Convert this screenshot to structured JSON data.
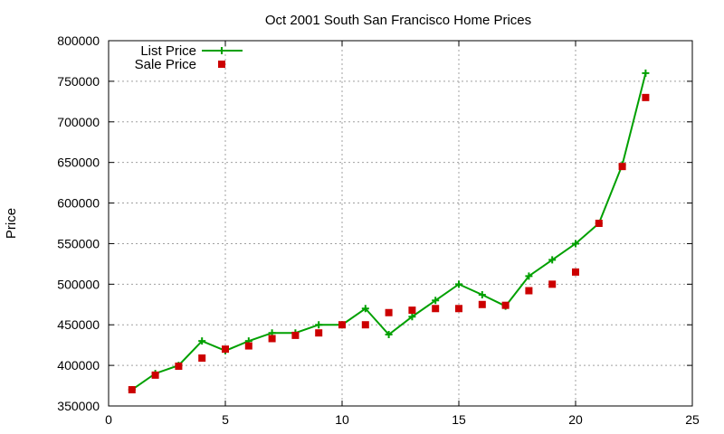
{
  "chart_data": {
    "type": "line",
    "title": "Oct 2001 South San Francisco Home Prices",
    "xlabel": "",
    "ylabel": "Price",
    "xlim": [
      0,
      25
    ],
    "ylim": [
      350000,
      800000
    ],
    "xticks": [
      0,
      5,
      10,
      15,
      20,
      25
    ],
    "yticks": [
      350000,
      400000,
      450000,
      500000,
      550000,
      600000,
      650000,
      700000,
      750000,
      800000
    ],
    "grid": true,
    "legend_position": "top-left",
    "series": [
      {
        "name": "List Price",
        "style": "line-with-cross-markers",
        "color": "#00a000",
        "x": [
          1,
          2,
          3,
          4,
          5,
          6,
          7,
          8,
          9,
          10,
          11,
          12,
          13,
          14,
          15,
          16,
          17,
          18,
          19,
          20,
          21,
          22,
          23
        ],
        "y": [
          370000,
          390000,
          400000,
          430000,
          418000,
          430000,
          440000,
          440000,
          450000,
          450000,
          470000,
          438000,
          460000,
          480000,
          500000,
          487000,
          473000,
          510000,
          530000,
          550000,
          575000,
          647000,
          760000
        ]
      },
      {
        "name": "Sale Price",
        "style": "square-markers",
        "color": "#cc0000",
        "x": [
          1,
          2,
          3,
          4,
          5,
          6,
          7,
          8,
          9,
          10,
          11,
          12,
          13,
          14,
          15,
          16,
          17,
          18,
          19,
          20,
          21,
          22,
          23
        ],
        "y": [
          370000,
          388000,
          399000,
          409000,
          420000,
          424000,
          433000,
          437000,
          440000,
          450000,
          450000,
          465000,
          468000,
          470000,
          470000,
          475000,
          474000,
          492000,
          500000,
          515000,
          575000,
          645000,
          730000
        ]
      }
    ]
  }
}
